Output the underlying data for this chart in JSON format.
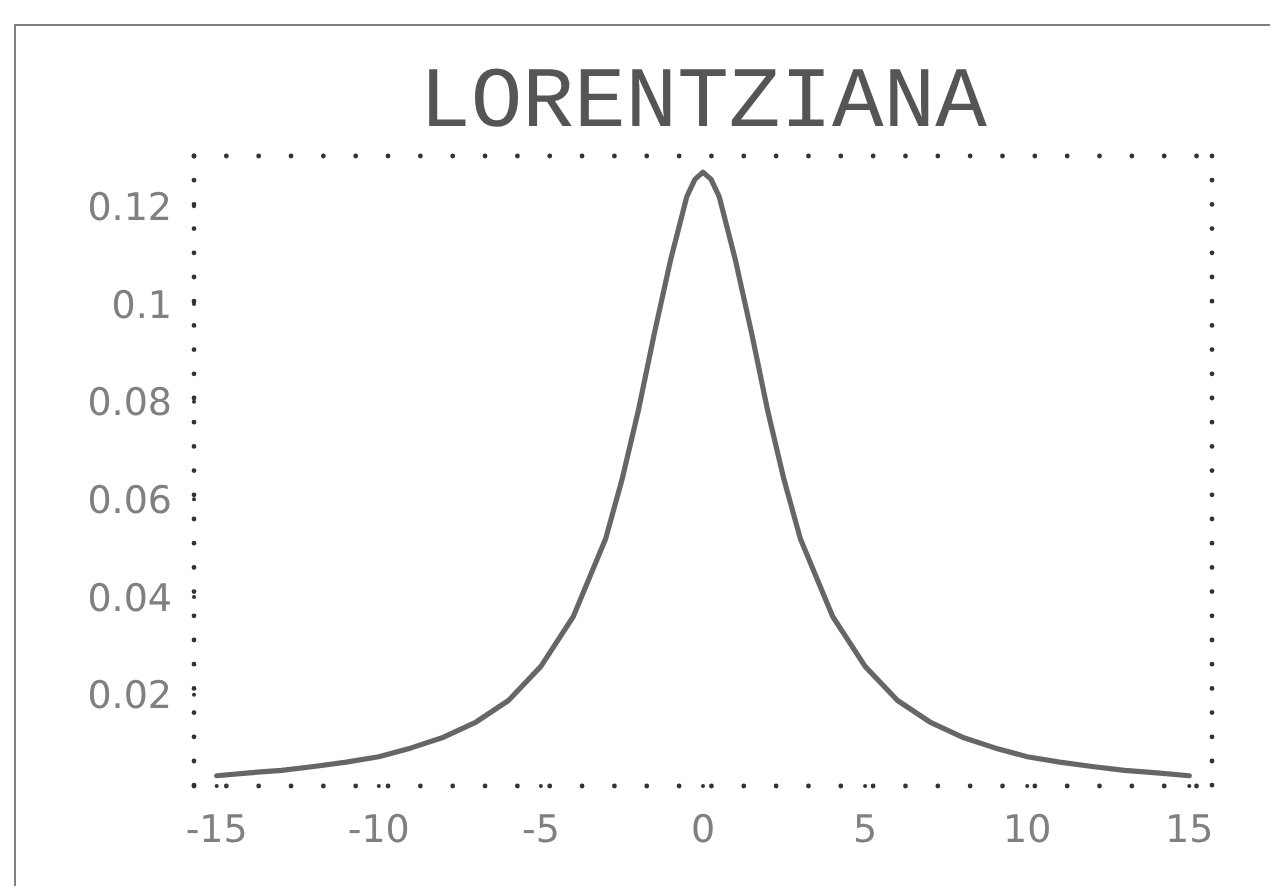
{
  "chart_data": {
    "type": "line",
    "title": "LORENTZIANA",
    "x": [
      -15,
      -14,
      -13,
      -12,
      -11,
      -10,
      -9,
      -8,
      -7,
      -6,
      -5,
      -4,
      -3,
      -2.5,
      -2,
      -1.5,
      -1,
      -0.5,
      -0.25,
      0,
      0.25,
      0.5,
      1,
      1.5,
      2,
      2.5,
      3,
      4,
      5,
      6,
      7,
      8,
      9,
      10,
      11,
      12,
      13,
      14,
      15
    ],
    "series": [
      {
        "color": "#666666",
        "values": [
          0.0034,
          0.004,
          0.0045,
          0.0053,
          0.0062,
          0.0073,
          0.0091,
          0.0113,
          0.0144,
          0.0188,
          0.0258,
          0.036,
          0.052,
          0.064,
          0.078,
          0.094,
          0.109,
          0.122,
          0.1255,
          0.127,
          0.1255,
          0.122,
          0.109,
          0.094,
          0.078,
          0.064,
          0.052,
          0.036,
          0.0258,
          0.0188,
          0.0144,
          0.0113,
          0.0091,
          0.0073,
          0.0062,
          0.0053,
          0.0045,
          0.004,
          0.0034
        ]
      }
    ],
    "xlim": [
      -15.7,
      15.7
    ],
    "ylim": [
      0.0013,
      0.1303
    ],
    "xticks": [
      -15,
      -10,
      -5,
      0,
      5,
      10,
      15
    ],
    "yticks": [
      0.02,
      0.04,
      0.06,
      0.08,
      0.1,
      0.12
    ]
  }
}
